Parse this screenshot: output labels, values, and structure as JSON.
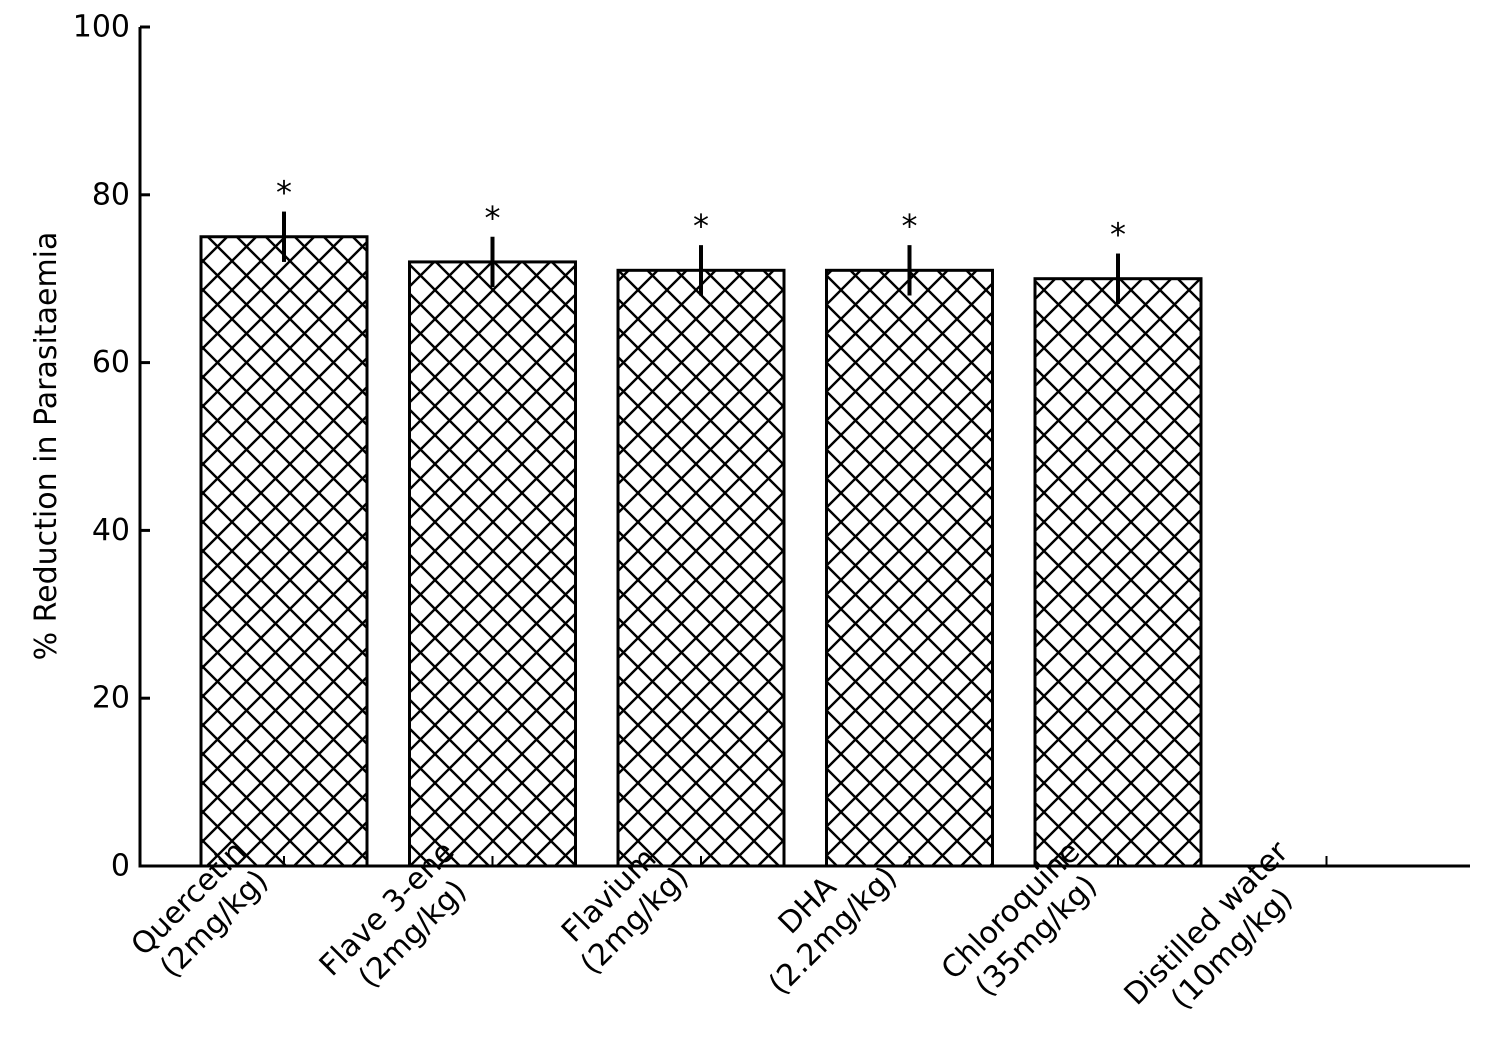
{
  "chart_data": {
    "type": "bar",
    "title": "",
    "xlabel": "",
    "ylabel": "% Reduction in Parasitaemia",
    "ylim": [
      0,
      100
    ],
    "yticks": [
      0,
      20,
      40,
      60,
      80,
      100
    ],
    "grid": false,
    "legend": "none",
    "bar_style": "white fill with black crosshatch",
    "categories": [
      [
        "Quercetin",
        "(2mg/kg)"
      ],
      [
        "Flave 3-ene",
        "(2mg/kg)"
      ],
      [
        "Flavium",
        "(2mg/kg)"
      ],
      [
        "DHA",
        "(2.2mg/kg)"
      ],
      [
        "Chloroquine",
        "(35mg/kg)"
      ],
      [
        "Distilled water",
        "(10mg/kg)"
      ]
    ],
    "values": [
      75,
      72,
      71,
      71,
      70,
      0
    ],
    "errors": [
      3,
      3,
      3,
      3,
      3,
      0
    ],
    "significance": [
      "*",
      "*",
      "*",
      "*",
      "*",
      ""
    ],
    "colors": {
      "bar_fill": "#ffffff",
      "bar_stroke": "#000000",
      "hatch": "#000000",
      "axis": "#000000"
    }
  }
}
